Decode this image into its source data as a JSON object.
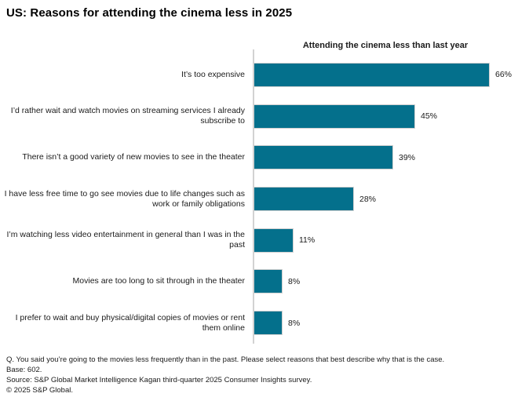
{
  "title": "US: Reasons for attending the cinema less in 2025",
  "chart_data": {
    "type": "bar",
    "orientation": "horizontal",
    "title": "Attending the cinema less than last year",
    "categories": [
      "It’s too expensive",
      "I’d rather wait and watch movies on streaming services I already subscribe to",
      "There isn’t a good variety of new movies to see in the theater",
      "I have less free time to go see movies due to life changes such as work or family obligations",
      "I’m watching less video entertainment in general than I was in the past",
      "Movies are too long to sit through in the theater",
      "I prefer to wait and buy physical/digital copies of movies or rent them online"
    ],
    "values": [
      66,
      45,
      39,
      28,
      11,
      8,
      8
    ],
    "value_labels": [
      "66%",
      "45%",
      "39%",
      "28%",
      "11%",
      "8%",
      "8%"
    ],
    "unit": "%",
    "xlim": [
      0,
      74
    ],
    "grid": false,
    "legend": false,
    "bar_color": "#04708C",
    "bar_border_color": "#cfcfcf",
    "axis_line_color": "#d2d2d2"
  },
  "footer": {
    "lines": [
      "Q. You said you’re going to the movies less frequently than in the past. Please select reasons that best describe why that is the case.",
      "Base: 602.",
      "Source: S&P Global Market Intelligence Kagan third-quarter 2025 Consumer Insights survey.",
      "© 2025 S&P Global."
    ]
  }
}
